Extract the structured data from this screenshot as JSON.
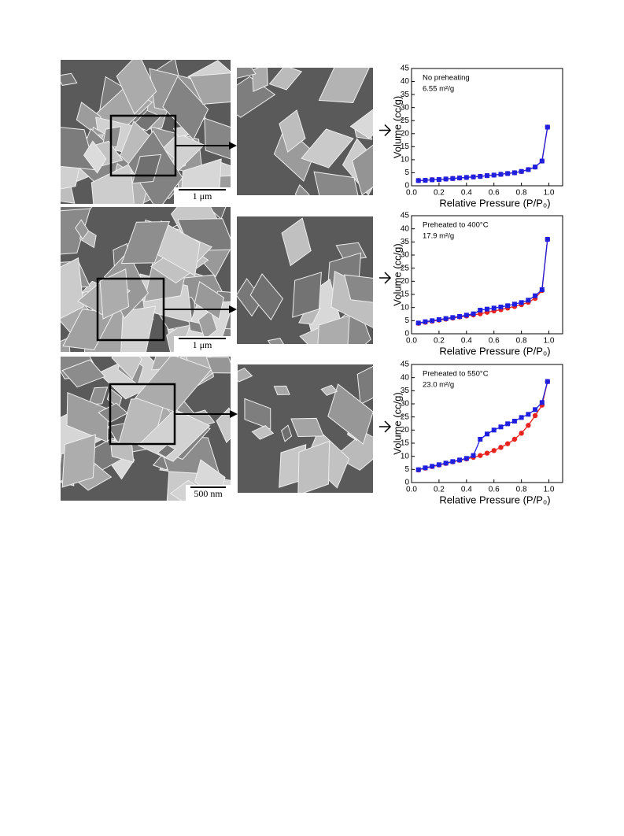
{
  "images": [
    {
      "scale_bar": "1 μm"
    },
    {
      "scale_bar": "1 μm"
    },
    {
      "scale_bar": "500 nm"
    }
  ],
  "chart_data": [
    {
      "type": "line",
      "annotations": [
        "No preheating",
        "6.55 m²/g"
      ],
      "x_label": "Relative Pressure (P/P₀)",
      "y_label": "Volume (cc/g)",
      "x": [
        0.05,
        0.1,
        0.15,
        0.2,
        0.25,
        0.3,
        0.35,
        0.4,
        0.45,
        0.5,
        0.55,
        0.6,
        0.65,
        0.7,
        0.75,
        0.8,
        0.85,
        0.9,
        0.95,
        0.99
      ],
      "series": [
        {
          "color": "#e8231f",
          "values": [
            2.0,
            2.1,
            2.3,
            2.4,
            2.6,
            2.8,
            3.0,
            3.2,
            3.4,
            3.6,
            3.9,
            4.1,
            4.4,
            4.7,
            5.0,
            5.5,
            6.2,
            7.2,
            9.5,
            22.5
          ]
        },
        {
          "color": "#1f1fe0",
          "values": [
            2.0,
            2.1,
            2.3,
            2.4,
            2.6,
            2.8,
            3.0,
            3.2,
            3.4,
            3.6,
            3.9,
            4.1,
            4.4,
            4.7,
            5.0,
            5.5,
            6.2,
            7.2,
            9.5,
            22.5
          ]
        }
      ],
      "xlim": [
        0,
        1.1
      ],
      "ylim": [
        0,
        45
      ],
      "xticks": [
        {
          "value": 0,
          "label": "0.0"
        },
        0.2,
        0.4,
        0.6,
        0.8,
        {
          "value": 1,
          "label": "1.0"
        }
      ],
      "yticks": [
        0,
        5,
        10,
        15,
        20,
        25,
        30,
        35,
        40,
        45
      ]
    },
    {
      "type": "line",
      "annotations": [
        "Preheated to 400°C",
        "17.9 m²/g"
      ],
      "x_label": "Relative Pressure (P/P₀)",
      "y_label": "Volume (cc/g)",
      "x": [
        0.05,
        0.1,
        0.15,
        0.2,
        0.25,
        0.3,
        0.35,
        0.4,
        0.45,
        0.5,
        0.55,
        0.6,
        0.65,
        0.7,
        0.75,
        0.8,
        0.85,
        0.9,
        0.95,
        0.99
      ],
      "series": [
        {
          "color": "#e8231f",
          "values": [
            4.0,
            4.4,
            4.8,
            5.2,
            5.6,
            6.0,
            6.4,
            6.8,
            7.2,
            7.6,
            8.2,
            8.7,
            9.2,
            9.8,
            10.4,
            11.1,
            12.0,
            13.5,
            16.5,
            36
          ]
        },
        {
          "color": "#1f1fe0",
          "values": [
            4.1,
            4.6,
            5.0,
            5.4,
            5.8,
            6.2,
            6.6,
            7.1,
            7.6,
            9.0,
            9.4,
            9.8,
            10.2,
            10.7,
            11.3,
            11.9,
            12.8,
            14.5,
            16.8,
            36
          ]
        }
      ],
      "xlim": [
        0,
        1.1
      ],
      "ylim": [
        0,
        45
      ],
      "xticks": [
        {
          "value": 0,
          "label": "0.0"
        },
        0.2,
        0.4,
        0.6,
        0.8,
        {
          "value": 1,
          "label": "1.0"
        }
      ],
      "yticks": [
        0,
        5,
        10,
        15,
        20,
        25,
        30,
        35,
        40,
        45
      ]
    },
    {
      "type": "line",
      "annotations": [
        "Preheated to 550°C",
        "23.0 m²/g"
      ],
      "x_label": "Relative Pressure (P/P₀)",
      "y_label": "Volume (cc/g)",
      "x": [
        0.05,
        0.1,
        0.15,
        0.2,
        0.25,
        0.3,
        0.35,
        0.4,
        0.45,
        0.5,
        0.55,
        0.6,
        0.65,
        0.7,
        0.75,
        0.8,
        0.85,
        0.9,
        0.95,
        0.99
      ],
      "series": [
        {
          "color": "#e8231f",
          "values": [
            4.8,
            5.5,
            6.1,
            6.7,
            7.3,
            7.9,
            8.5,
            9.0,
            9.6,
            10.3,
            11.2,
            12.2,
            13.4,
            14.8,
            16.5,
            18.8,
            21.8,
            25.5,
            29.5,
            38.5
          ]
        },
        {
          "color": "#1f1fe0",
          "values": [
            4.9,
            5.6,
            6.2,
            6.8,
            7.4,
            8.0,
            8.6,
            9.2,
            10.3,
            16.5,
            18.5,
            20.0,
            21.2,
            22.4,
            23.4,
            24.8,
            26.0,
            27.8,
            30.5,
            38.5
          ]
        }
      ],
      "xlim": [
        0,
        1.1
      ],
      "ylim": [
        0,
        45
      ],
      "xticks": [
        {
          "value": 0,
          "label": "0.0"
        },
        0.2,
        0.4,
        0.6,
        0.8,
        {
          "value": 1,
          "label": "1.0"
        }
      ],
      "yticks": [
        0,
        5,
        10,
        15,
        20,
        25,
        30,
        35,
        40,
        45
      ]
    }
  ]
}
